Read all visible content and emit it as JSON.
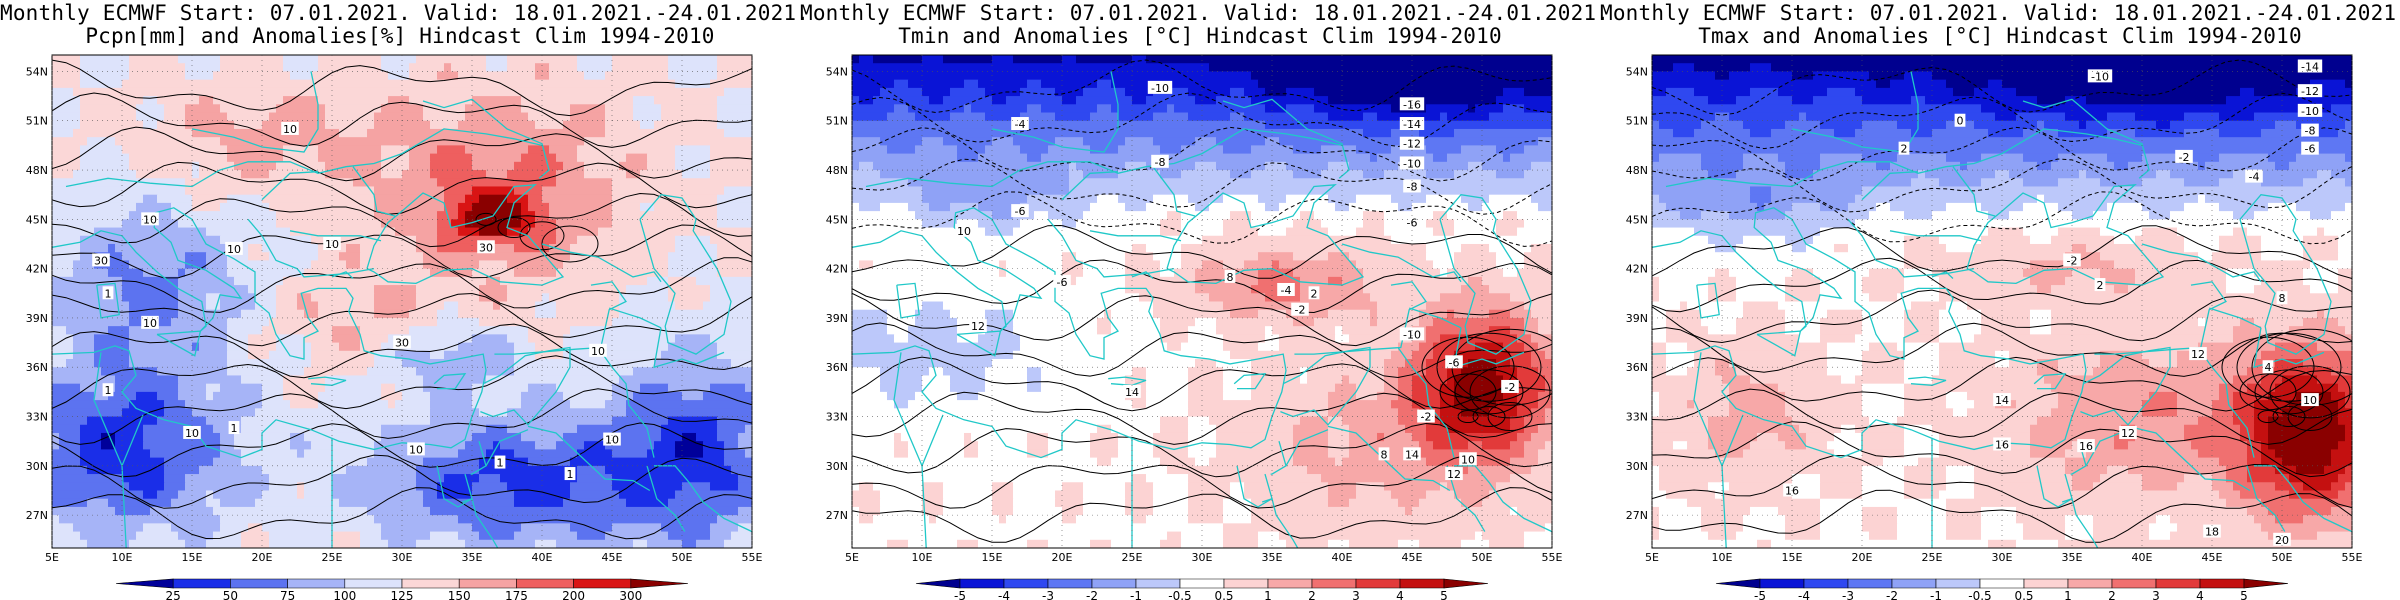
{
  "panels": [
    {
      "title_line1": "Monthly ECMWF Start: 07.01.2021. Valid: 18.01.2021.-24.01.2021.",
      "title_line2": "Pcpn[mm] and Anomalies[%] Hindcast Clim 1994-2010",
      "colorbar": {
        "labels": [
          "25",
          "50",
          "75",
          "100",
          "125",
          "150",
          "175",
          "200",
          "300"
        ],
        "colors": [
          "#00009a",
          "#1a2ee8",
          "#5c73f0",
          "#a6b4f7",
          "#dde3fb",
          "#fbd7d7",
          "#f5a3a3",
          "#ee5f5f",
          "#d91414",
          "#8a0000"
        ]
      },
      "contour_labels": [
        "10",
        "30",
        "10",
        "10",
        "1",
        "10",
        "10",
        "30",
        "10",
        "1",
        "10",
        "1",
        "1",
        "10",
        "1",
        "10",
        "30"
      ],
      "field": "precip"
    },
    {
      "title_line1": "Monthly ECMWF Start: 07.01.2021. Valid: 18.01.2021.-24.01.2021.",
      "title_line2": "Tmin and Anomalies [°C] Hindcast Clim 1994-2010",
      "colorbar": {
        "labels": [
          "-5",
          "-4",
          "-3",
          "-2",
          "-1",
          "-0.5",
          "0.5",
          "1",
          "2",
          "3",
          "4",
          "5"
        ],
        "colors": [
          "#00008f",
          "#0a14d6",
          "#2f48f0",
          "#5e77f3",
          "#8fa2f6",
          "#bcc8fa",
          "#ffffff",
          "#fcd3d3",
          "#f7a8a8",
          "#f07070",
          "#e23a3a",
          "#c41010",
          "#8a0000"
        ]
      },
      "contour_labels": [
        "-10",
        "-16",
        "-14",
        "-12",
        "-10",
        "-8",
        "-6",
        "-4",
        "-8",
        "-6",
        "10",
        "12",
        "-6",
        "-4",
        "8",
        "2",
        "-2",
        "14",
        "-10",
        "-6",
        "-2",
        "8",
        "14",
        "10",
        "12",
        "-2"
      ],
      "field": "tmin"
    },
    {
      "title_line1": "Monthly ECMWF Start: 07.01.2021. Valid: 18.01.2021.-24.01.2021.",
      "title_line2": "Tmax and Anomalies [°C] Hindcast Clim 1994-2010",
      "colorbar": {
        "labels": [
          "-5",
          "-4",
          "-3",
          "-2",
          "-1",
          "-0.5",
          "0.5",
          "1",
          "2",
          "3",
          "4",
          "5"
        ],
        "colors": [
          "#00008f",
          "#0a14d6",
          "#2f48f0",
          "#5e77f3",
          "#8fa2f6",
          "#bcc8fa",
          "#ffffff",
          "#fcd3d3",
          "#f7a8a8",
          "#f07070",
          "#e23a3a",
          "#c41010",
          "#8a0000"
        ]
      },
      "contour_labels": [
        "-14",
        "-10",
        "-12",
        "-10",
        "-8",
        "-6",
        "-4",
        "-2",
        "0",
        "2",
        "-2",
        "2",
        "8",
        "14",
        "16",
        "16",
        "12",
        "16",
        "18",
        "20",
        "12",
        "10",
        "4"
      ],
      "field": "tmax"
    }
  ],
  "axes": {
    "lat_labels": [
      "54N",
      "51N",
      "48N",
      "45N",
      "42N",
      "39N",
      "36N",
      "33N",
      "30N",
      "27N"
    ],
    "lon_labels": [
      "5E",
      "10E",
      "15E",
      "20E",
      "25E",
      "30E",
      "35E",
      "40E",
      "45E",
      "50E",
      "55E"
    ]
  },
  "map_extent": {
    "lon_min": 5,
    "lon_max": 55,
    "lat_min": 25,
    "lat_max": 55
  },
  "colors": {
    "coastline": "#20c8c8",
    "contour": "#000000",
    "frame": "#000000"
  }
}
